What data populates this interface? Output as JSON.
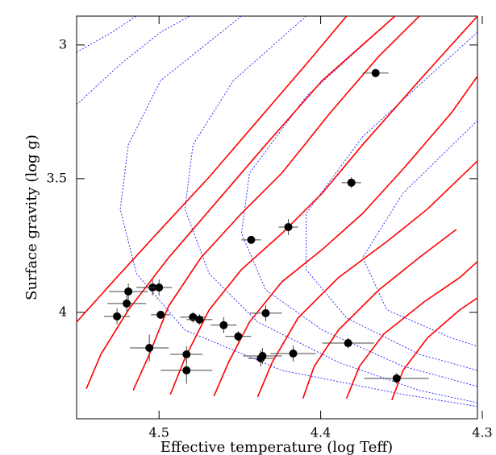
{
  "chart_data": {
    "type": "scatter",
    "xlabel": "Effective temperature (log Teff)",
    "ylabel": "Surface gravity (log g)",
    "xlim": [
      4.551,
      4.303
    ],
    "ylim": [
      2.892,
      4.398
    ],
    "xticks": [
      4.5,
      4.4,
      4.3
    ],
    "yticks": [
      3,
      3.5,
      4
    ],
    "track_color": "#ff0000",
    "isochrone_color": "#3333ff",
    "point_color": "#000000",
    "tracks": [
      {
        "x": [
          4.551,
          4.524,
          4.499,
          4.469,
          4.439,
          4.409,
          4.384
        ],
        "y": [
          4.036,
          3.855,
          3.69,
          3.494,
          3.283,
          3.072,
          2.892
        ]
      },
      {
        "x": [
          4.545,
          4.536,
          4.519,
          4.494,
          4.464,
          4.434,
          4.399,
          4.354
        ],
        "y": [
          4.286,
          4.157,
          3.991,
          3.795,
          3.584,
          3.373,
          3.133,
          2.892
        ]
      },
      {
        "x": [
          4.516,
          4.506,
          4.494,
          4.474,
          4.449,
          4.424,
          4.394,
          4.364,
          4.339
        ],
        "y": [
          4.292,
          4.157,
          3.976,
          3.795,
          3.63,
          3.479,
          3.253,
          3.042,
          2.892
        ]
      },
      {
        "x": [
          4.493,
          4.484,
          4.469,
          4.449,
          4.424,
          4.399,
          4.374,
          4.339,
          4.303
        ],
        "y": [
          4.307,
          4.172,
          3.991,
          3.84,
          3.705,
          3.554,
          3.373,
          3.133,
          2.892
        ]
      },
      {
        "x": [
          4.466,
          4.457,
          4.444,
          4.424,
          4.399,
          4.374,
          4.349,
          4.319,
          4.303
        ],
        "y": [
          4.313,
          4.187,
          4.036,
          3.886,
          3.765,
          3.63,
          3.464,
          3.253,
          3.117
        ]
      },
      {
        "x": [
          4.439,
          4.43,
          4.414,
          4.389,
          4.359,
          4.334,
          4.303
        ],
        "y": [
          4.316,
          4.187,
          4.021,
          3.87,
          3.735,
          3.614,
          3.434
        ]
      },
      {
        "x": [
          4.411,
          4.404,
          4.389,
          4.364,
          4.339,
          4.316
        ],
        "y": [
          4.322,
          4.202,
          4.066,
          3.916,
          3.795,
          3.69
        ]
      },
      {
        "x": [
          4.384,
          4.376,
          4.361,
          4.336,
          4.314,
          4.303
        ],
        "y": [
          4.322,
          4.202,
          4.081,
          3.961,
          3.87,
          3.81
        ]
      },
      {
        "x": [
          4.356,
          4.349,
          4.334,
          4.314,
          4.303
        ],
        "y": [
          4.328,
          4.217,
          4.096,
          3.991,
          3.946
        ]
      }
    ],
    "isochrones": [
      {
        "x": [
          4.551,
          4.524,
          4.499,
          4.481
        ],
        "y": [
          3.223,
          3.072,
          2.952,
          2.892
        ]
      },
      {
        "x": [
          4.551,
          4.529,
          4.514
        ],
        "y": [
          3.027,
          2.952,
          2.892
        ]
      },
      {
        "x": [
          4.449,
          4.499,
          4.519,
          4.524,
          4.514,
          4.484,
          4.424,
          4.349,
          4.303
        ],
        "y": [
          2.892,
          3.133,
          3.373,
          3.614,
          3.855,
          4.066,
          4.217,
          4.307,
          4.352
        ]
      },
      {
        "x": [
          4.409,
          4.454,
          4.479,
          4.484,
          4.469,
          4.439,
          4.389,
          4.339,
          4.303
        ],
        "y": [
          2.892,
          3.133,
          3.373,
          3.614,
          3.855,
          4.036,
          4.187,
          4.292,
          4.338
        ]
      },
      {
        "x": [
          4.354,
          4.409,
          4.444,
          4.449,
          4.434,
          4.399,
          4.349,
          4.303
        ],
        "y": [
          2.892,
          3.193,
          3.479,
          3.705,
          3.916,
          4.066,
          4.202,
          4.277
        ]
      },
      {
        "x": [
          4.303,
          4.374,
          4.409,
          4.409,
          4.384,
          4.339,
          4.303
        ],
        "y": [
          2.952,
          3.343,
          3.63,
          3.84,
          4.021,
          4.157,
          4.217
        ]
      },
      {
        "x": [
          4.303,
          4.349,
          4.374,
          4.359,
          4.319,
          4.303
        ],
        "y": [
          3.283,
          3.554,
          3.795,
          3.991,
          4.096,
          4.127
        ]
      }
    ],
    "points": {
      "x": [
        4.366,
        4.381,
        4.42,
        4.443,
        4.519,
        4.504,
        4.5,
        4.52,
        4.526,
        4.499,
        4.479,
        4.475,
        4.46,
        4.451,
        4.434,
        4.506,
        4.483,
        4.483,
        4.437,
        4.436,
        4.417,
        4.383,
        4.353
      ],
      "y": [
        3.105,
        3.515,
        3.681,
        3.729,
        3.922,
        3.907,
        3.907,
        3.967,
        4.015,
        4.009,
        4.018,
        4.027,
        4.048,
        4.09,
        4.003,
        4.133,
        4.157,
        4.217,
        4.172,
        4.163,
        4.154,
        4.115,
        4.247
      ],
      "x_err": [
        0.008,
        0.006,
        0.006,
        0.006,
        0.012,
        0.01,
        0.008,
        0.012,
        0.008,
        0.006,
        0.008,
        0.008,
        0.008,
        0.008,
        0.01,
        0.012,
        0.01,
        0.016,
        0.008,
        0.012,
        0.014,
        0.016,
        0.02
      ],
      "y_err": [
        0.01,
        0.02,
        0.03,
        0.01,
        0.03,
        0.03,
        0.03,
        0.03,
        0.03,
        0.01,
        0.02,
        0.02,
        0.03,
        0.02,
        0.03,
        0.05,
        0.03,
        0.05,
        0.03,
        0.03,
        0.03,
        0.02,
        0.02
      ]
    }
  }
}
